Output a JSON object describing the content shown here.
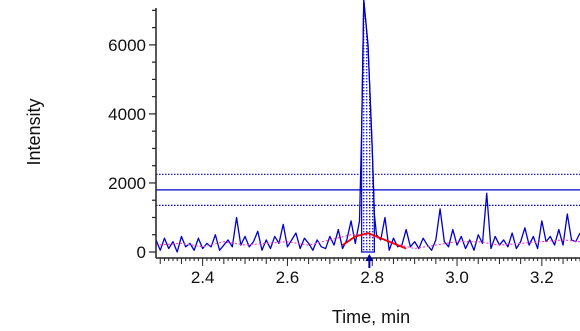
{
  "chart_data": {
    "type": "line",
    "title": "",
    "xlabel": "Time, min",
    "ylabel": "Intensity",
    "xlim": [
      2.29,
      3.29
    ],
    "ylim": [
      0,
      7300
    ],
    "x_ticks": [
      2.4,
      2.6,
      2.8,
      3.0,
      3.2
    ],
    "x_tick_labels": [
      "2.4",
      "2.6",
      "2.8",
      "3.0",
      "3.2"
    ],
    "y_ticks": [
      0,
      2000,
      4000,
      6000
    ],
    "y_tick_labels": [
      "0",
      "2000",
      "4000",
      "6000"
    ],
    "grid": false,
    "legend": "none",
    "series": [
      {
        "style": "solid",
        "color": "#0000cc",
        "x": [
          2.29,
          2.3,
          2.31,
          2.32,
          2.33,
          2.34,
          2.35,
          2.36,
          2.37,
          2.38,
          2.39,
          2.4,
          2.41,
          2.42,
          2.43,
          2.44,
          2.45,
          2.46,
          2.47,
          2.48,
          2.49,
          2.5,
          2.51,
          2.52,
          2.53,
          2.54,
          2.55,
          2.56,
          2.57,
          2.58,
          2.59,
          2.6,
          2.61,
          2.62,
          2.63,
          2.64,
          2.65,
          2.66,
          2.67,
          2.68,
          2.69,
          2.7,
          2.71,
          2.72,
          2.73,
          2.74,
          2.75,
          2.76,
          2.77,
          2.775,
          2.78,
          2.79,
          2.8,
          2.805,
          2.81,
          2.82,
          2.83,
          2.84,
          2.85,
          2.86,
          2.87,
          2.88,
          2.89,
          2.9,
          2.91,
          2.92,
          2.93,
          2.94,
          2.95,
          2.96,
          2.97,
          2.98,
          2.99,
          3.0,
          3.01,
          3.02,
          3.03,
          3.04,
          3.05,
          3.06,
          3.07,
          3.08,
          3.09,
          3.1,
          3.11,
          3.12,
          3.13,
          3.14,
          3.15,
          3.16,
          3.17,
          3.18,
          3.19,
          3.2,
          3.21,
          3.22,
          3.23,
          3.24,
          3.25,
          3.26,
          3.27,
          3.28,
          3.29
        ],
        "y": [
          350,
          50,
          400,
          100,
          300,
          0,
          450,
          150,
          250,
          50,
          400,
          100,
          250,
          150,
          500,
          50,
          200,
          350,
          150,
          1000,
          200,
          450,
          150,
          300,
          600,
          50,
          350,
          100,
          450,
          250,
          800,
          150,
          350,
          550,
          100,
          400,
          250,
          50,
          350,
          150,
          100,
          450,
          200,
          650,
          100,
          350,
          900,
          250,
          900,
          3500,
          7300,
          6000,
          3000,
          1100,
          500,
          350,
          1000,
          50,
          400,
          150,
          200,
          650,
          150,
          300,
          100,
          400,
          200,
          50,
          350,
          1250,
          300,
          150,
          650,
          200,
          450,
          100,
          350,
          50,
          500,
          250,
          1700,
          100,
          450,
          200,
          350,
          150,
          550,
          100,
          300,
          700,
          200,
          450,
          100,
          900,
          300,
          450,
          200,
          650,
          200,
          1100,
          350,
          300,
          550
        ]
      },
      {
        "style": "dotted",
        "color": "#ff33cc",
        "x": [
          2.29,
          2.35,
          2.4,
          2.45,
          2.5,
          2.55,
          2.6,
          2.65,
          2.7,
          2.75,
          2.78,
          2.81,
          2.85,
          2.9,
          2.95,
          3.0,
          3.05,
          3.1,
          3.15,
          3.2,
          3.25,
          3.29
        ],
        "y": [
          200,
          250,
          150,
          300,
          200,
          250,
          300,
          200,
          350,
          500,
          500,
          420,
          250,
          100,
          200,
          300,
          300,
          200,
          250,
          300,
          350,
          300
        ]
      }
    ],
    "baseline": {
      "color": "#ee0000",
      "x": [
        2.73,
        2.76,
        2.79,
        2.82,
        2.85,
        2.88
      ],
      "y": [
        200,
        450,
        550,
        400,
        250,
        100
      ]
    },
    "threshold_lines": [
      {
        "y": 2250,
        "style": "dotted",
        "color": "#0000cc"
      },
      {
        "y": 1800,
        "style": "solid",
        "color": "#0000cc"
      },
      {
        "y": 1350,
        "style": "dotted",
        "color": "#0000cc"
      }
    ],
    "peak_area": {
      "x_start": 2.775,
      "x_end": 2.805,
      "fill": "dotted",
      "color": "#0000cc"
    },
    "peak_marker": {
      "x": 2.805,
      "shape": "arrow-up",
      "color": "#000099"
    }
  }
}
